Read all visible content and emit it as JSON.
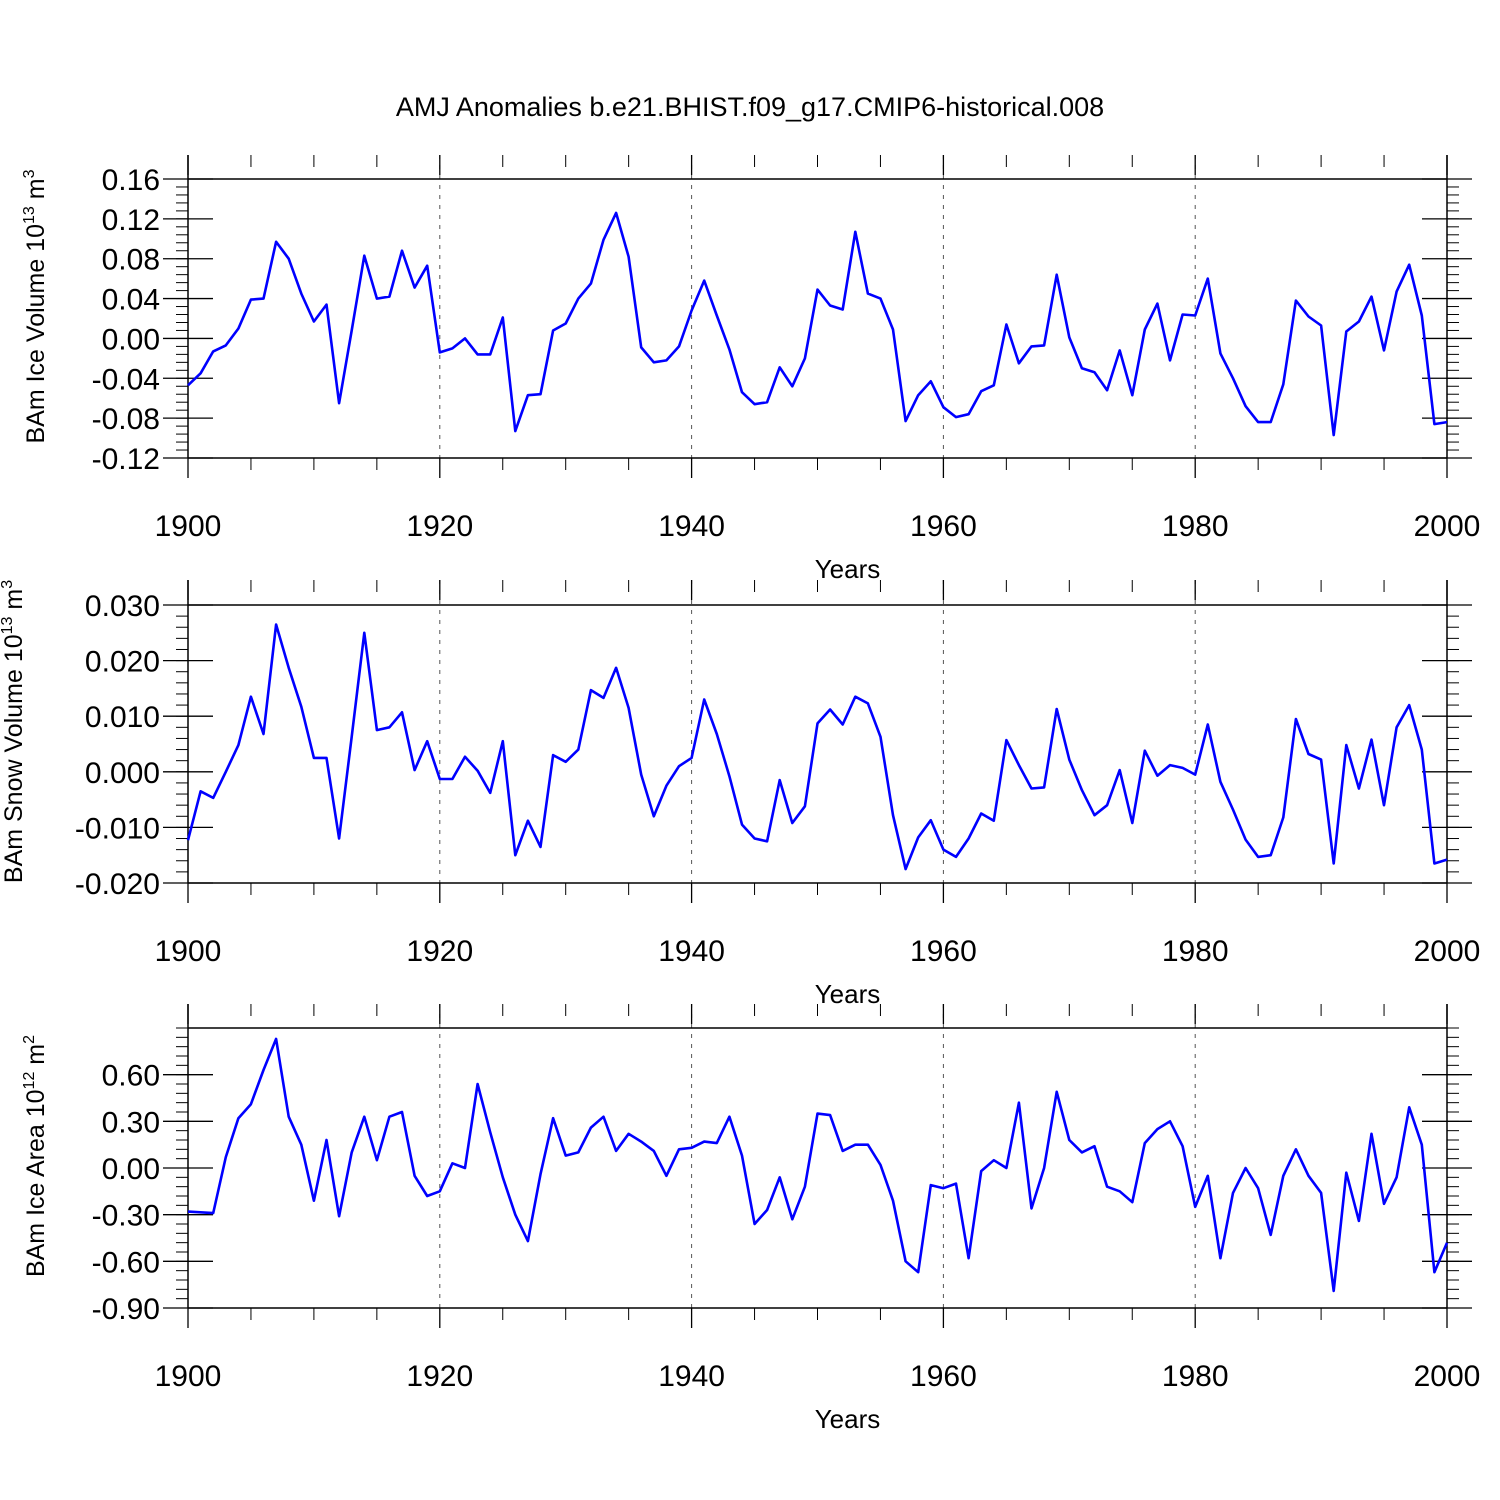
{
  "title": "AMJ Anomalies b.e21.BHIST.f09_g17.CMIP6-historical.008",
  "line_color": "#0000ff",
  "chart_data": [
    {
      "type": "line",
      "ylabel": "BAm Ice Volume 10",
      "ylabel_exp": "13",
      "ylabel_unit": " m",
      "ylabel_unit_exp": "3",
      "xlabel": "Years",
      "xlim": [
        1900,
        2000
      ],
      "ylim": [
        -0.12,
        0.16
      ],
      "yticks": [
        -0.12,
        -0.08,
        -0.04,
        0.0,
        0.04,
        0.08,
        0.12,
        0.16
      ],
      "ytick_labels": [
        "-0.12",
        "-0.08",
        "-0.04",
        "0.00",
        "0.04",
        "0.08",
        "0.12",
        "0.16"
      ],
      "xticks": [
        1900,
        1920,
        1940,
        1960,
        1980,
        2000
      ],
      "xtick_labels": [
        "1900",
        "1920",
        "1940",
        "1960",
        "1980",
        "2000"
      ],
      "series": [
        {
          "x_start": 1900,
          "values": [
            -0.047,
            -0.035,
            -0.013,
            -0.007,
            0.01,
            0.039,
            0.04,
            0.097,
            0.08,
            0.045,
            0.017,
            0.034,
            -0.065,
            0.008,
            0.083,
            0.04,
            0.042,
            0.088,
            0.051,
            0.073,
            -0.014,
            -0.01,
            0.0,
            -0.016,
            -0.016,
            0.021,
            -0.093,
            -0.057,
            -0.056,
            0.008,
            0.015,
            0.04,
            0.055,
            0.099,
            0.126,
            0.082,
            -0.009,
            -0.024,
            -0.022,
            -0.008,
            0.028,
            0.058,
            0.023,
            -0.011,
            -0.054,
            -0.066,
            -0.064,
            -0.029,
            -0.048,
            -0.02,
            0.049,
            0.033,
            0.029,
            0.107,
            0.045,
            0.04,
            0.009,
            -0.083,
            -0.057,
            -0.043,
            -0.069,
            -0.079,
            -0.076,
            -0.053,
            -0.047,
            0.014,
            -0.025,
            -0.008,
            -0.007,
            0.064,
            0.001,
            -0.03,
            -0.034,
            -0.052,
            -0.012,
            -0.057,
            0.009,
            0.035,
            -0.022,
            0.024,
            0.023,
            0.06,
            -0.015,
            -0.04,
            -0.068,
            -0.084,
            -0.084,
            -0.046,
            0.038,
            0.022,
            0.013,
            -0.097,
            0.007,
            0.017,
            0.042,
            -0.012,
            0.047,
            0.074,
            0.023,
            -0.086,
            -0.084
          ]
        }
      ]
    },
    {
      "type": "line",
      "ylabel": "BAm Snow Volume 10",
      "ylabel_exp": "13",
      "ylabel_unit": " m",
      "ylabel_unit_exp": "3",
      "xlabel": "Years",
      "xlim": [
        1900,
        2000
      ],
      "ylim": [
        -0.02,
        0.03
      ],
      "yticks": [
        -0.02,
        -0.01,
        0.0,
        0.01,
        0.02,
        0.03
      ],
      "ytick_labels": [
        "-0.020",
        "-0.010",
        "0.000",
        "0.010",
        "0.020",
        "0.030"
      ],
      "xticks": [
        1900,
        1920,
        1940,
        1960,
        1980,
        2000
      ],
      "xtick_labels": [
        "1900",
        "1920",
        "1940",
        "1960",
        "1980",
        "2000"
      ],
      "series": [
        {
          "x_start": 1900,
          "values": [
            -0.0123,
            -0.0035,
            -0.0047,
            0.0,
            0.0048,
            0.0135,
            0.0068,
            0.0265,
            0.0187,
            0.0117,
            0.0025,
            0.0025,
            -0.012,
            0.0063,
            0.025,
            0.0075,
            0.008,
            0.0107,
            0.0003,
            0.0055,
            -0.0013,
            -0.0013,
            0.0027,
            0.0002,
            -0.0038,
            0.0055,
            -0.015,
            -0.0088,
            -0.0135,
            0.003,
            0.0018,
            0.004,
            0.0147,
            0.0133,
            0.0187,
            0.0115,
            -0.0005,
            -0.008,
            -0.0025,
            0.001,
            0.0025,
            0.013,
            0.0068,
            -0.0008,
            -0.0095,
            -0.012,
            -0.0125,
            -0.0015,
            -0.0092,
            -0.0062,
            0.0087,
            0.0112,
            0.0085,
            0.0135,
            0.0123,
            0.0063,
            -0.0078,
            -0.0175,
            -0.0118,
            -0.0087,
            -0.014,
            -0.0153,
            -0.012,
            -0.0075,
            -0.0088,
            0.0057,
            0.0012,
            -0.003,
            -0.0028,
            0.0113,
            0.0022,
            -0.0033,
            -0.0078,
            -0.006,
            0.0003,
            -0.0092,
            0.0038,
            -0.0007,
            0.0012,
            0.0007,
            -0.0005,
            0.0085,
            -0.0018,
            -0.0068,
            -0.0122,
            -0.0153,
            -0.015,
            -0.0082,
            0.0095,
            0.0032,
            0.0022,
            -0.0165,
            0.0048,
            -0.003,
            0.0058,
            -0.006,
            0.008,
            0.012,
            0.004,
            -0.0165,
            -0.0158
          ]
        }
      ]
    },
    {
      "type": "line",
      "ylabel": "BAm Ice Area 10",
      "ylabel_exp": "12",
      "ylabel_unit": " m",
      "ylabel_unit_exp": "2",
      "xlabel": "Years",
      "xlim": [
        1900,
        2000
      ],
      "ylim": [
        -0.9,
        0.9
      ],
      "yticks": [
        -0.9,
        -0.6,
        -0.3,
        0.0,
        0.3,
        0.6
      ],
      "ytick_labels": [
        "-0.90",
        "-0.60",
        "-0.30",
        "0.00",
        "0.30",
        "0.60"
      ],
      "xticks": [
        1900,
        1920,
        1940,
        1960,
        1980,
        2000
      ],
      "xtick_labels": [
        "1900",
        "1920",
        "1940",
        "1960",
        "1980",
        "2000"
      ],
      "series": [
        {
          "x_start": 1900,
          "values": [
            -0.28,
            -0.285,
            -0.29,
            0.07,
            0.32,
            0.41,
            0.63,
            0.83,
            0.33,
            0.15,
            -0.21,
            0.18,
            -0.31,
            0.1,
            0.33,
            0.05,
            0.33,
            0.36,
            -0.05,
            -0.18,
            -0.15,
            0.03,
            0.0,
            0.54,
            0.23,
            -0.06,
            -0.3,
            -0.47,
            -0.04,
            0.32,
            0.08,
            0.1,
            0.26,
            0.33,
            0.11,
            0.22,
            0.17,
            0.11,
            -0.05,
            0.12,
            0.13,
            0.17,
            0.16,
            0.33,
            0.08,
            -0.36,
            -0.27,
            -0.06,
            -0.33,
            -0.12,
            0.35,
            0.34,
            0.11,
            0.15,
            0.15,
            0.02,
            -0.21,
            -0.6,
            -0.67,
            -0.11,
            -0.13,
            -0.1,
            -0.58,
            -0.02,
            0.05,
            0.0,
            0.42,
            -0.26,
            0.0,
            0.49,
            0.18,
            0.1,
            0.14,
            -0.12,
            -0.15,
            -0.22,
            0.16,
            0.25,
            0.3,
            0.14,
            -0.25,
            -0.05,
            -0.58,
            -0.16,
            0.0,
            -0.13,
            -0.43,
            -0.05,
            0.12,
            -0.05,
            -0.16,
            -0.79,
            -0.03,
            -0.34,
            0.22,
            -0.23,
            -0.06,
            0.39,
            0.15,
            -0.67,
            -0.48
          ]
        }
      ]
    }
  ]
}
